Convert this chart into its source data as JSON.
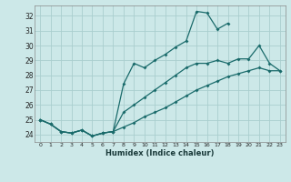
{
  "xlabel": "Humidex (Indice chaleur)",
  "bg_color": "#cce8e8",
  "grid_color": "#aacece",
  "line_color": "#1a6b6b",
  "xlim": [
    -0.5,
    23.5
  ],
  "ylim": [
    23.5,
    32.7
  ],
  "xticks": [
    0,
    1,
    2,
    3,
    4,
    5,
    6,
    7,
    8,
    9,
    10,
    11,
    12,
    13,
    14,
    15,
    16,
    17,
    18,
    19,
    20,
    21,
    22,
    23
  ],
  "yticks": [
    24,
    25,
    26,
    27,
    28,
    29,
    30,
    31,
    32
  ],
  "series1_x": [
    0,
    1,
    2,
    3,
    4,
    5,
    6,
    7,
    8,
    9,
    10,
    11,
    12,
    13,
    14,
    15,
    16,
    17,
    18,
    19,
    20,
    21,
    22,
    23
  ],
  "series1_y": [
    25.0,
    24.7,
    24.2,
    24.1,
    24.3,
    23.9,
    24.1,
    24.2,
    24.5,
    24.8,
    25.2,
    25.5,
    25.8,
    26.2,
    26.6,
    27.0,
    27.3,
    27.6,
    27.9,
    28.1,
    28.3,
    28.5,
    28.3,
    28.3
  ],
  "series2_x": [
    0,
    1,
    2,
    3,
    4,
    5,
    6,
    7,
    8,
    9,
    10,
    11,
    12,
    13,
    14,
    15,
    16,
    17,
    18,
    19,
    20,
    21,
    22,
    23
  ],
  "series2_y": [
    25.0,
    24.7,
    24.2,
    24.1,
    24.3,
    23.9,
    24.1,
    24.2,
    27.4,
    28.8,
    28.5,
    29.0,
    29.4,
    29.9,
    30.3,
    32.3,
    32.2,
    31.1,
    31.5,
    null,
    null,
    null,
    null,
    null
  ],
  "series3_x": [
    0,
    1,
    2,
    3,
    4,
    5,
    6,
    7,
    8,
    9,
    10,
    11,
    12,
    13,
    14,
    15,
    16,
    17,
    18,
    19,
    20,
    21,
    22,
    23
  ],
  "series3_y": [
    25.0,
    24.7,
    24.2,
    24.1,
    24.3,
    23.9,
    24.1,
    24.2,
    25.5,
    26.0,
    26.5,
    27.0,
    27.5,
    28.0,
    28.5,
    28.8,
    28.8,
    29.0,
    28.8,
    29.1,
    29.1,
    30.0,
    28.8,
    28.3
  ]
}
